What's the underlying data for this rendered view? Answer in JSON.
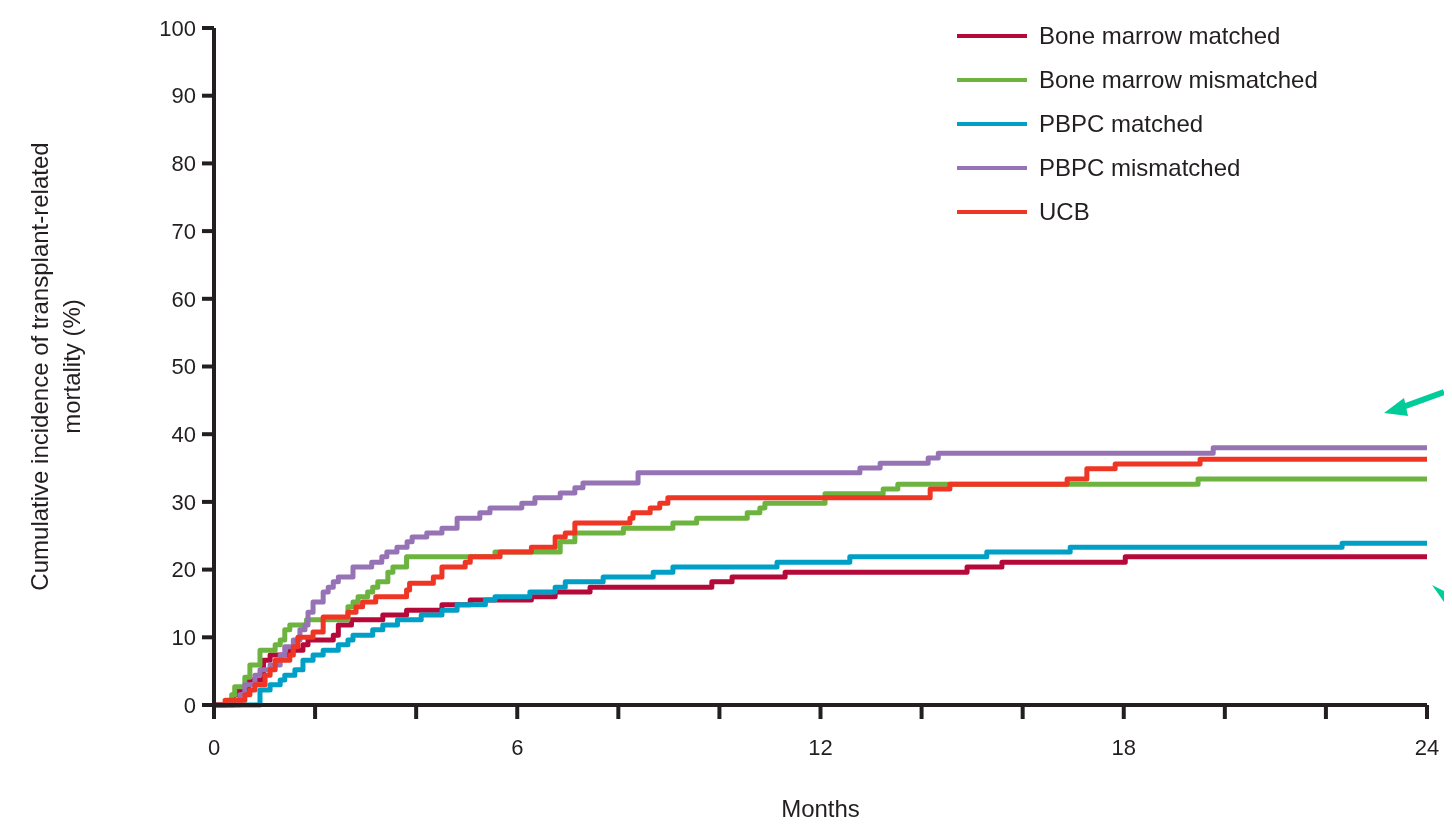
{
  "chart_data": {
    "type": "step",
    "xlabel": "Months",
    "ylabel": "Cumulative incidence of transplant-related mortality (%)",
    "xlim": [
      0,
      24
    ],
    "ylim": [
      0,
      100
    ],
    "xticks": [
      0,
      {
        "value": 2,
        "label": null
      },
      {
        "value": 4,
        "label": null
      },
      6,
      {
        "value": 8,
        "label": null
      },
      {
        "value": 10,
        "label": null
      },
      12,
      {
        "value": 14,
        "label": null
      },
      {
        "value": 16,
        "label": null
      },
      18,
      {
        "value": 20,
        "label": null
      },
      {
        "value": 22,
        "label": null
      },
      24
    ],
    "yticks": [
      0,
      10,
      20,
      30,
      40,
      50,
      60,
      70,
      80,
      90,
      100
    ],
    "grid": false,
    "legend": "top right",
    "marker": "none",
    "line_style": "solid",
    "series": [
      {
        "name": "Bone marrow matched",
        "color": "#b5093a",
        "x": [
          0,
          0.35,
          0.38,
          0.48,
          0.68,
          0.98,
          1.11,
          1.5,
          1.76,
          1.86,
          2.36,
          2.46,
          2.72,
          3.34,
          3.81,
          4.51,
          5.07,
          6.28,
          6.75,
          7.44,
          9.85,
          10.25,
          11.3,
          14.9,
          15.59,
          18.03,
          24
        ],
        "values": [
          0,
          0,
          1.5,
          2.2,
          3.7,
          6.6,
          7.4,
          8.1,
          8.9,
          9.6,
          10.3,
          11.8,
          12.6,
          13.3,
          14,
          14.8,
          15.5,
          16,
          16.7,
          17.4,
          18.2,
          18.9,
          19.6,
          20.4,
          21.1,
          21.9,
          21.9
        ]
      },
      {
        "name": "Bone marrow mismatched",
        "color": "#6db33f",
        "x": [
          0,
          0.3,
          0.35,
          0.41,
          0.61,
          0.71,
          0.91,
          1.21,
          1.31,
          1.4,
          1.5,
          1.83,
          2.65,
          2.75,
          2.85,
          3.04,
          3.14,
          3.24,
          3.44,
          3.54,
          3.81,
          5.56,
          6.85,
          7.14,
          8.1,
          9.08,
          9.55,
          10.55,
          10.8,
          10.9,
          12.09,
          13.24,
          13.53,
          19.47,
          24
        ],
        "values": [
          0,
          0,
          1.5,
          2.7,
          4.1,
          5.9,
          8.1,
          8.9,
          9.6,
          11.1,
          11.8,
          12.6,
          14.5,
          15.2,
          16,
          16.7,
          17.4,
          18.2,
          19.6,
          20.4,
          21.9,
          22.6,
          24.1,
          25.4,
          26.1,
          26.9,
          27.6,
          28.4,
          29.1,
          29.8,
          31.2,
          31.9,
          32.6,
          33.4,
          33.4
        ]
      },
      {
        "name": "PBPC matched",
        "color": "#00a0c6",
        "x": [
          0,
          0.42,
          0.91,
          1.11,
          1.31,
          1.4,
          1.6,
          1.76,
          1.96,
          2.16,
          2.46,
          2.65,
          2.75,
          3.14,
          3.34,
          3.63,
          4.1,
          4.51,
          4.81,
          5.37,
          5.56,
          6.25,
          6.75,
          6.95,
          7.7,
          8.69,
          9.08,
          11.14,
          12.58,
          15.29,
          16.94,
          22.32,
          24
        ],
        "values": [
          0,
          0,
          2.2,
          3,
          3.7,
          4.4,
          5.2,
          6.6,
          7.4,
          8.1,
          8.9,
          9.6,
          10.3,
          11.1,
          11.8,
          12.6,
          13.3,
          14,
          14.8,
          15.5,
          16,
          16.7,
          17.4,
          18.2,
          18.9,
          19.6,
          20.4,
          21.1,
          21.9,
          22.6,
          23.3,
          23.9,
          23.9
        ]
      },
      {
        "name": "PBPC mismatched",
        "color": "#9673b5",
        "x": [
          0,
          0.32,
          0.51,
          0.61,
          0.81,
          0.91,
          1.11,
          1.31,
          1.4,
          1.57,
          1.7,
          1.8,
          1.86,
          1.96,
          2.16,
          2.26,
          2.36,
          2.46,
          2.75,
          3.12,
          3.32,
          3.42,
          3.62,
          3.82,
          3.92,
          4.21,
          4.51,
          4.81,
          5.26,
          5.46,
          6.09,
          6.35,
          6.85,
          7.14,
          7.3,
          8.39,
          12.78,
          13.18,
          14.13,
          14.33,
          19.77,
          24
        ],
        "values": [
          0,
          0,
          1.5,
          3,
          4.4,
          5.2,
          5.9,
          7.4,
          8.6,
          9.6,
          11.1,
          11.8,
          13.7,
          15.2,
          16.7,
          17.4,
          18.2,
          18.9,
          20.4,
          21.1,
          21.9,
          22.6,
          23.3,
          24.1,
          24.8,
          25.4,
          26.1,
          27.6,
          28.4,
          29.1,
          29.8,
          30.6,
          31.3,
          32.1,
          32.8,
          34.3,
          35,
          35.7,
          36.5,
          37.2,
          38,
          38
        ]
      },
      {
        "name": "UCB",
        "color": "#ef3524",
        "x": [
          0,
          0.22,
          0.61,
          0.71,
          0.81,
          1.01,
          1.11,
          1.21,
          1.5,
          1.57,
          1.66,
          1.96,
          2.16,
          2.65,
          2.81,
          2.94,
          3.2,
          3.81,
          3.87,
          4.34,
          4.51,
          4.97,
          5.07,
          5.66,
          6.28,
          6.75,
          6.95,
          7.14,
          8.23,
          8.29,
          8.63,
          8.82,
          8.98,
          14.17,
          14.56,
          16.88,
          17.27,
          17.83,
          19.51,
          24
        ],
        "values": [
          0,
          0.7,
          1.5,
          2.2,
          3,
          4.4,
          5.2,
          6.6,
          7.4,
          8.6,
          10,
          10.8,
          13,
          13.7,
          14.5,
          15.2,
          16,
          17,
          18,
          18.9,
          20.4,
          21.1,
          21.9,
          22.6,
          23.3,
          24.8,
          25.4,
          26.9,
          27.6,
          28.4,
          29.1,
          29.8,
          30.6,
          31.9,
          32.6,
          33.4,
          34.9,
          35.6,
          36.3,
          36.3
        ]
      }
    ]
  }
}
